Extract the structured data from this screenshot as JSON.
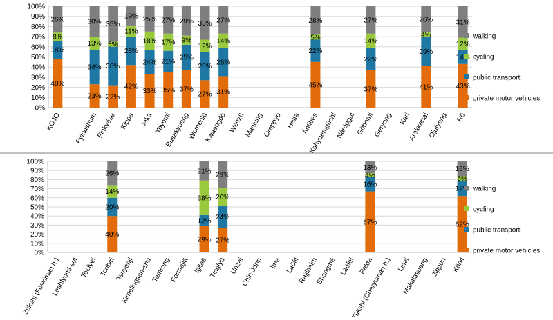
{
  "legend": {
    "labels": [
      "walking",
      "cycling",
      "public transport",
      "private motor vehicles"
    ]
  },
  "colors": {
    "private motor vehicles": "#E36C0A",
    "public transport": "#1F78A4",
    "cycling": "#9BC93E",
    "walking": "#7F7F7F",
    "gridline": "#D9D9D9",
    "axis": "#BFBFBF",
    "separator": "#808080"
  },
  "chart_data": [
    {
      "type": "bar",
      "stacked": true,
      "categories": [
        "KOJO",
        "",
        "Pyingshum",
        "Finkyäse",
        "Kippa",
        "Jaka",
        "Yoyomi",
        "Busakyueng",
        "Womenlü",
        "Kwaengdö",
        "Wenzü",
        "Manlung",
        "Oreppyo",
        "Hetta",
        "Äntibes",
        "Kahyuemgüchi",
        "Náröggul",
        "Göhomi",
        "Geryong",
        "Kari",
        "Arákkanai",
        "Ojufyeng",
        "Rö"
      ],
      "series": [
        {
          "name": "private motor vehicles",
          "values": [
            48,
            null,
            23,
            22,
            42,
            33,
            35,
            37,
            27,
            31,
            null,
            null,
            null,
            null,
            45,
            null,
            null,
            37,
            null,
            null,
            41,
            null,
            43
          ]
        },
        {
          "name": "public transport",
          "values": [
            18,
            null,
            34,
            38,
            28,
            24,
            21,
            25,
            28,
            28,
            null,
            null,
            null,
            null,
            22,
            null,
            null,
            22,
            null,
            null,
            29,
            null,
            14
          ]
        },
        {
          "name": "cycling",
          "values": [
            8,
            null,
            13,
            5,
            11,
            18,
            17,
            9,
            12,
            14,
            null,
            null,
            null,
            null,
            5,
            null,
            null,
            14,
            null,
            null,
            4,
            null,
            12
          ]
        },
        {
          "name": "walking",
          "values": [
            26,
            null,
            30,
            35,
            19,
            25,
            27,
            29,
            33,
            27,
            null,
            null,
            null,
            null,
            28,
            null,
            null,
            27,
            null,
            null,
            26,
            null,
            31
          ]
        }
      ],
      "yticks": [
        "0%",
        "10%",
        "20%",
        "30%",
        "40%",
        "50%",
        "60%",
        "70%",
        "80%",
        "90%",
        "100%"
      ],
      "ylim": [
        0,
        100
      ],
      "grid": true,
      "legend_position": "right"
    },
    {
      "type": "bar",
      "stacked": true,
      "categories": [
        "Zükshi (Fóskiman h.)",
        "Leshfyomi-sul",
        "Toefyei",
        "Toribiri",
        "Tsuyenji",
        "Kimelingsan-shu",
        "Tamrong",
        "Formajiä",
        "Igilaë",
        "Tinglyü",
        "Unzai",
        "Chin-Jörin",
        "Ïme",
        "Laöfil",
        "Rajjlhaim",
        "Shangmë",
        "Läöfei",
        "Palda",
        "Zükshi (Cheryuman h.)",
        "Linai",
        "Makalasueng",
        "Jippun",
        "Könil"
      ],
      "series": [
        {
          "name": "private motor vehicles",
          "values": [
            null,
            null,
            null,
            40,
            null,
            null,
            null,
            null,
            29,
            27,
            null,
            null,
            null,
            null,
            null,
            null,
            null,
            67,
            null,
            null,
            null,
            null,
            62
          ]
        },
        {
          "name": "public transport",
          "values": [
            null,
            null,
            null,
            20,
            null,
            null,
            null,
            null,
            12,
            24,
            null,
            null,
            null,
            null,
            null,
            null,
            null,
            16,
            null,
            null,
            null,
            null,
            17
          ]
        },
        {
          "name": "cycling",
          "values": [
            null,
            null,
            null,
            14,
            null,
            null,
            null,
            null,
            38,
            20,
            null,
            null,
            null,
            null,
            null,
            null,
            null,
            4,
            null,
            null,
            null,
            null,
            5
          ]
        },
        {
          "name": "walking",
          "values": [
            null,
            null,
            null,
            26,
            null,
            null,
            null,
            null,
            21,
            29,
            null,
            null,
            null,
            null,
            null,
            null,
            null,
            13,
            null,
            null,
            null,
            null,
            16
          ]
        }
      ],
      "yticks": [
        "0%",
        "10%",
        "20%",
        "30%",
        "40%",
        "50%",
        "60%",
        "70%",
        "80%",
        "90%",
        "100%"
      ],
      "ylim": [
        0,
        100
      ],
      "grid": true,
      "legend_position": "right"
    }
  ]
}
